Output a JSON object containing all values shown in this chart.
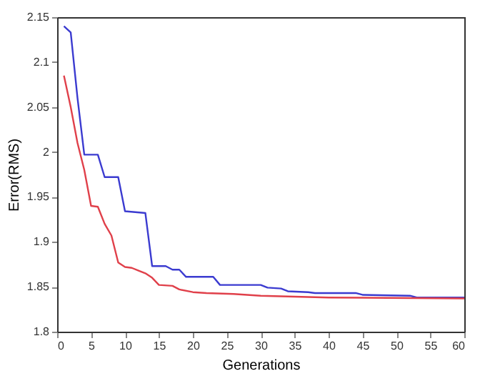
{
  "chart_data": {
    "type": "line",
    "xlabel": "Generations",
    "ylabel": "Error(RMS)",
    "xlim": [
      0,
      60
    ],
    "xticks": [
      0,
      5,
      10,
      15,
      20,
      25,
      30,
      35,
      40,
      45,
      50,
      55,
      60
    ],
    "ylim": [
      1.8,
      2.15
    ],
    "yticks": [
      1.8,
      1.85,
      1.9,
      1.95,
      2,
      2.05,
      2.1,
      2.15
    ],
    "grid": false,
    "line_style": "solid",
    "marker": "none",
    "series": [
      {
        "color": "#3b3bd0",
        "x": [
          1,
          2,
          3,
          4,
          6,
          7,
          9,
          10,
          13,
          14,
          16,
          17,
          18,
          19,
          23,
          24,
          30,
          31,
          33,
          34,
          37,
          38,
          44,
          45,
          52,
          53,
          60
        ],
        "values": [
          2.14,
          2.133,
          2.06,
          1.997,
          1.997,
          1.972,
          1.972,
          1.934,
          1.932,
          1.873,
          1.873,
          1.869,
          1.869,
          1.861,
          1.861,
          1.852,
          1.852,
          1.849,
          1.848,
          1.845,
          1.844,
          1.843,
          1.843,
          1.841,
          1.84,
          1.838,
          1.838
        ]
      },
      {
        "color": "#e0404a",
        "x": [
          1,
          2,
          3,
          4,
          5,
          6,
          7,
          8,
          9,
          10,
          11,
          12,
          13,
          14,
          15,
          17,
          18,
          20,
          22,
          26,
          30,
          35,
          40,
          60
        ],
        "values": [
          2.085,
          2.05,
          2.01,
          1.98,
          1.94,
          1.939,
          1.92,
          1.907,
          1.877,
          1.872,
          1.871,
          1.868,
          1.865,
          1.86,
          1.852,
          1.851,
          1.847,
          1.844,
          1.843,
          1.842,
          1.84,
          1.839,
          1.838,
          1.837
        ]
      }
    ]
  }
}
